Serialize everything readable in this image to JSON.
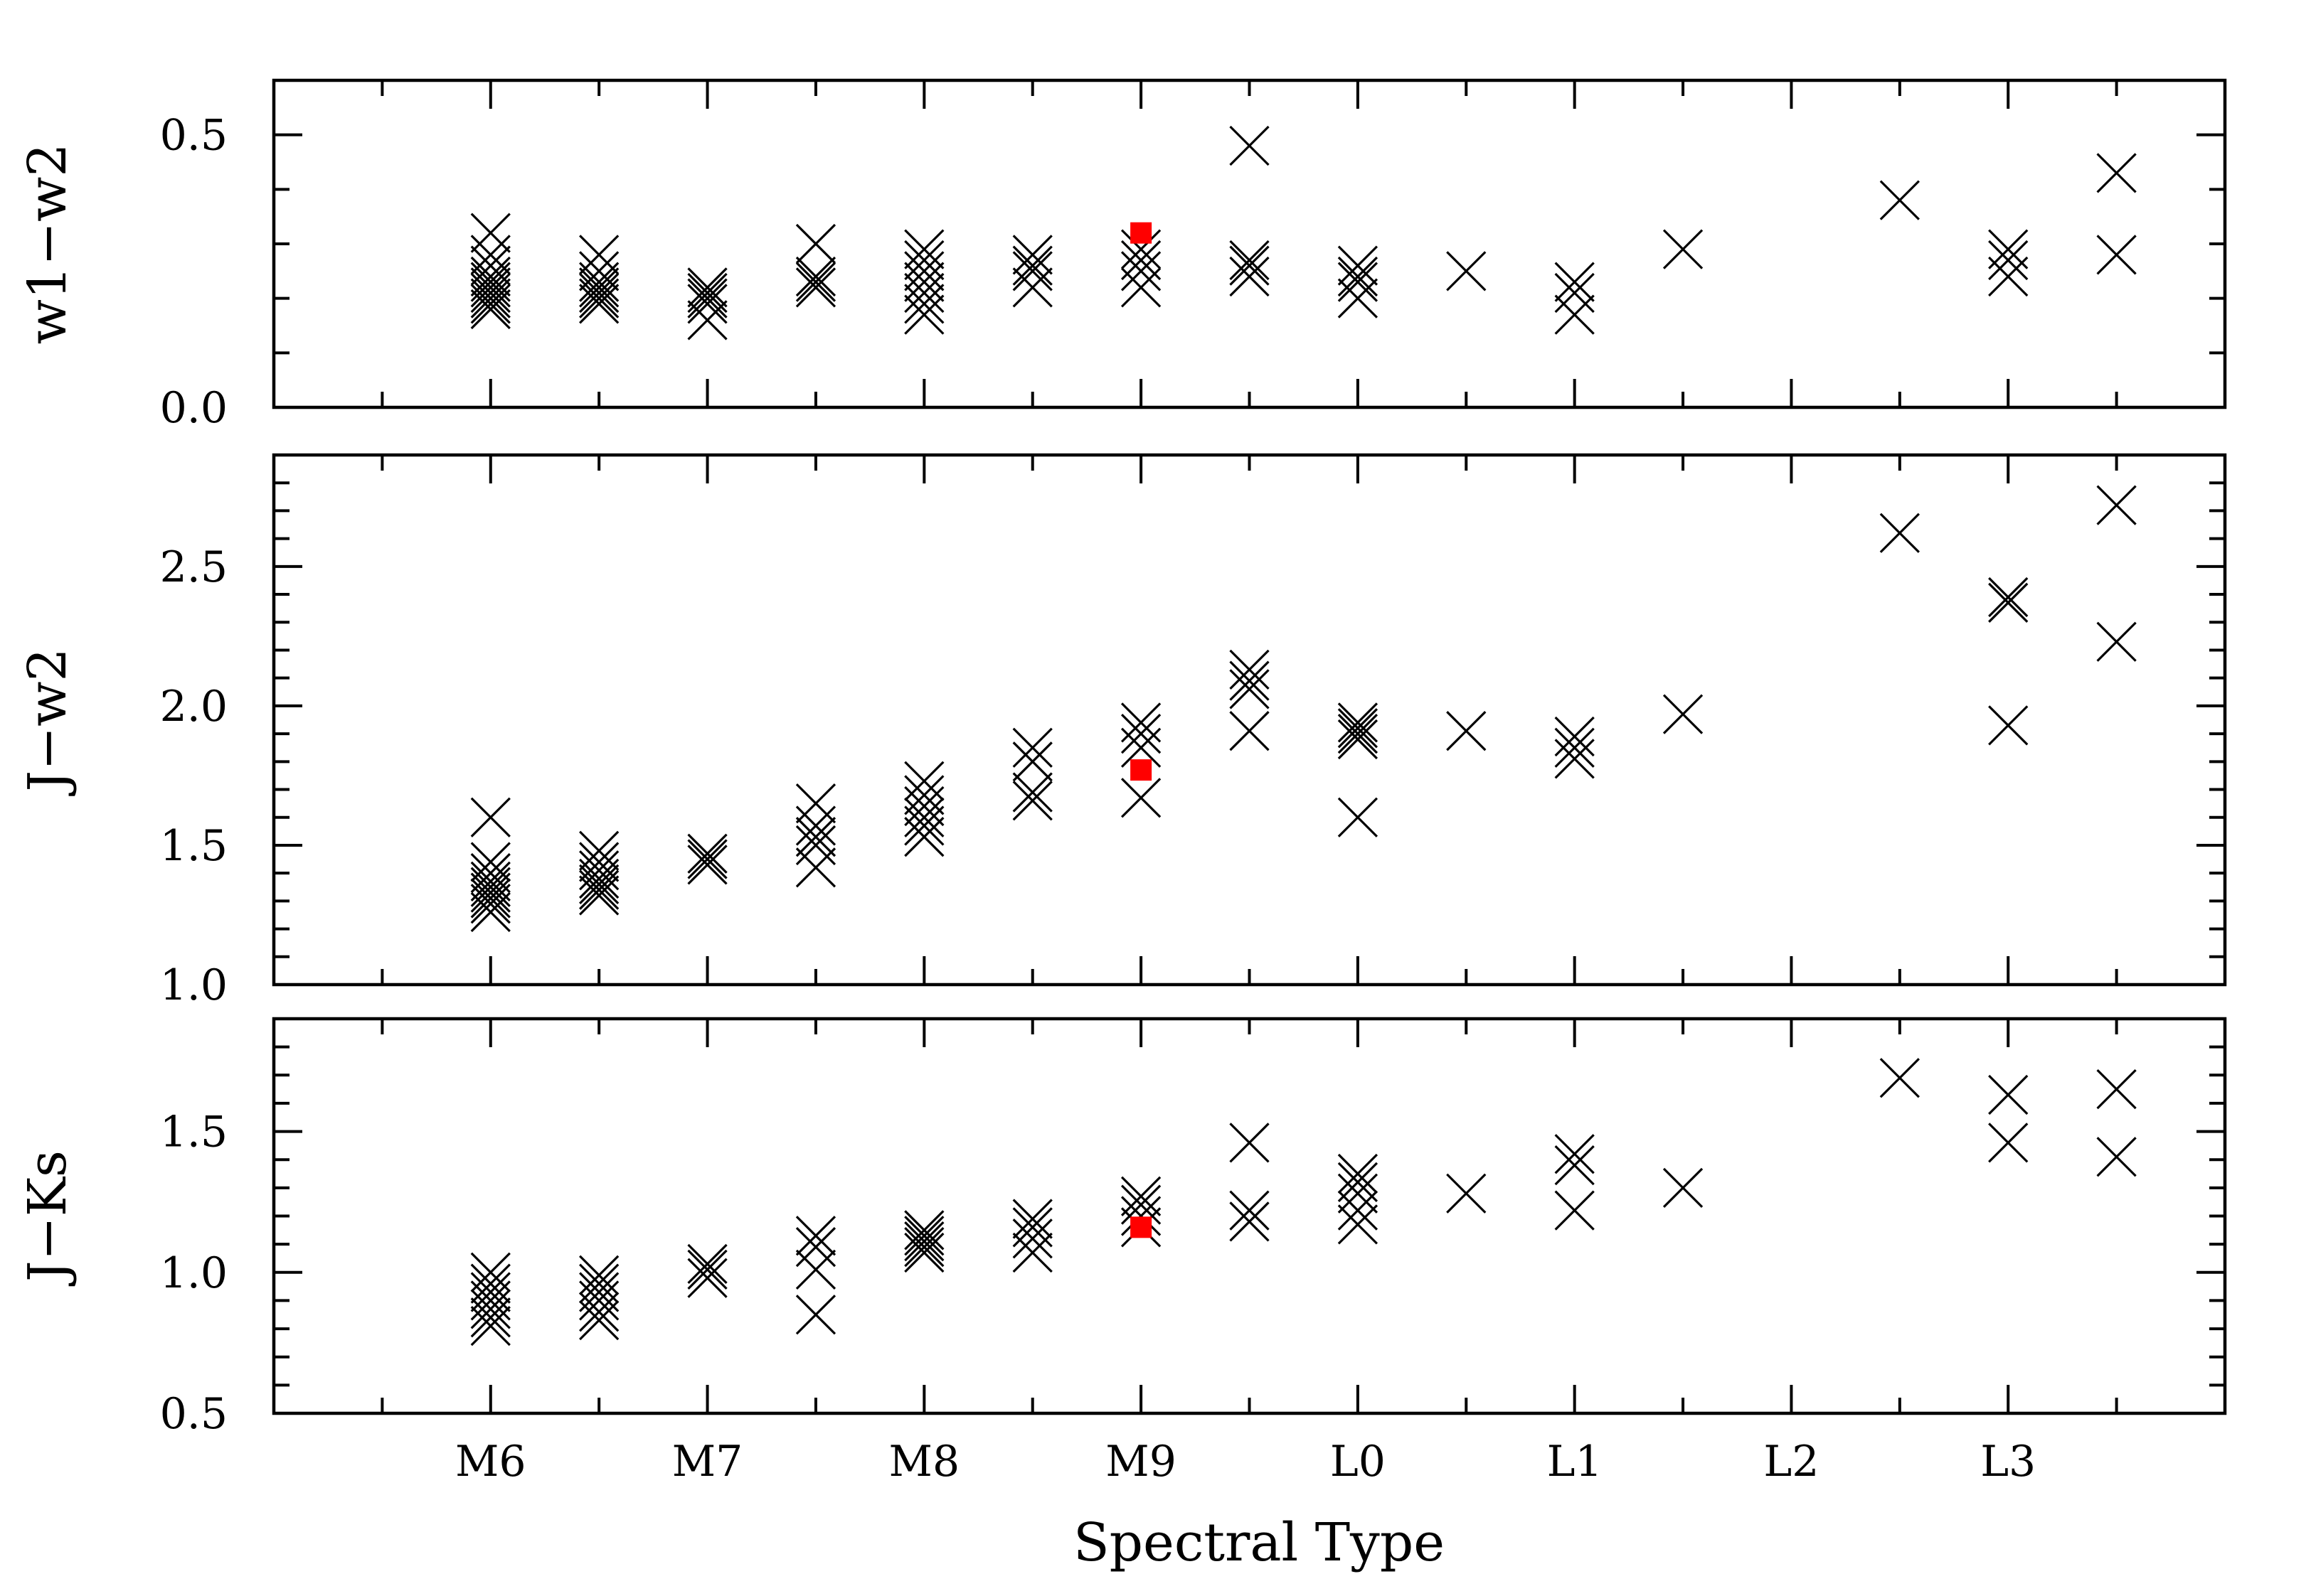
{
  "chart_data": {
    "type": "scatter",
    "xlabel": "Spectral Type",
    "x_tick_labels": [
      "M6",
      "M7",
      "M8",
      "M9",
      "L0",
      "L1",
      "L2",
      "L3"
    ],
    "x_tick_values": [
      6,
      7,
      8,
      9,
      10,
      11,
      12,
      13
    ],
    "xlim": [
      5,
      14
    ],
    "highlight_color": "#ff0000",
    "marker_color": "#000000",
    "marker": "cross",
    "highlight_marker": "filled-square",
    "panels": [
      {
        "ylabel": "w1−w2",
        "ylim": [
          0.0,
          0.6
        ],
        "y_ticks": [
          0.0,
          0.5
        ],
        "y_tick_labels": [
          "0.0",
          "0.5"
        ],
        "minor_step": 0.1,
        "points": [
          [
            6,
            0.32
          ],
          [
            6,
            0.28
          ],
          [
            6,
            0.26
          ],
          [
            6,
            0.24
          ],
          [
            6,
            0.23
          ],
          [
            6,
            0.22
          ],
          [
            6,
            0.21
          ],
          [
            6,
            0.2
          ],
          [
            6,
            0.19
          ],
          [
            6,
            0.18
          ],
          [
            6.5,
            0.28
          ],
          [
            6.5,
            0.25
          ],
          [
            6.5,
            0.23
          ],
          [
            6.5,
            0.22
          ],
          [
            6.5,
            0.21
          ],
          [
            6.5,
            0.2
          ],
          [
            6.5,
            0.19
          ],
          [
            7,
            0.22
          ],
          [
            7,
            0.21
          ],
          [
            7,
            0.2
          ],
          [
            7,
            0.19
          ],
          [
            7,
            0.16
          ],
          [
            7.5,
            0.3
          ],
          [
            7.5,
            0.24
          ],
          [
            7.5,
            0.23
          ],
          [
            7.5,
            0.22
          ],
          [
            8,
            0.29
          ],
          [
            8,
            0.27
          ],
          [
            8,
            0.25
          ],
          [
            8,
            0.23
          ],
          [
            8,
            0.21
          ],
          [
            8,
            0.19
          ],
          [
            8,
            0.17
          ],
          [
            8.5,
            0.28
          ],
          [
            8.5,
            0.26
          ],
          [
            8.5,
            0.25
          ],
          [
            8.5,
            0.22
          ],
          [
            9,
            0.29
          ],
          [
            9,
            0.27
          ],
          [
            9,
            0.25
          ],
          [
            9,
            0.22
          ],
          [
            9.5,
            0.48
          ],
          [
            9.5,
            0.27
          ],
          [
            9.5,
            0.26
          ],
          [
            9.5,
            0.24
          ],
          [
            10,
            0.26
          ],
          [
            10,
            0.24
          ],
          [
            10,
            0.23
          ],
          [
            10,
            0.2
          ],
          [
            10.5,
            0.25
          ],
          [
            11,
            0.23
          ],
          [
            11,
            0.21
          ],
          [
            11,
            0.17
          ],
          [
            11.5,
            0.29
          ],
          [
            12.5,
            0.38
          ],
          [
            13,
            0.29
          ],
          [
            13,
            0.27
          ],
          [
            13,
            0.24
          ],
          [
            13.5,
            0.43
          ],
          [
            13.5,
            0.28
          ]
        ],
        "highlight": [
          [
            9,
            0.32
          ]
        ]
      },
      {
        "ylabel": "J−w2",
        "ylim": [
          1.0,
          2.9
        ],
        "y_ticks": [
          1.0,
          1.5,
          2.0,
          2.5
        ],
        "y_tick_labels": [
          "1.0",
          "1.5",
          "2.0",
          "2.5"
        ],
        "minor_step": 0.1,
        "points": [
          [
            6,
            1.6
          ],
          [
            6,
            1.44
          ],
          [
            6,
            1.4
          ],
          [
            6,
            1.37
          ],
          [
            6,
            1.35
          ],
          [
            6,
            1.33
          ],
          [
            6,
            1.31
          ],
          [
            6,
            1.29
          ],
          [
            6,
            1.26
          ],
          [
            6.5,
            1.48
          ],
          [
            6.5,
            1.44
          ],
          [
            6.5,
            1.41
          ],
          [
            6.5,
            1.38
          ],
          [
            6.5,
            1.36
          ],
          [
            6.5,
            1.34
          ],
          [
            6.5,
            1.32
          ],
          [
            7,
            1.47
          ],
          [
            7,
            1.45
          ],
          [
            7,
            1.43
          ],
          [
            7.5,
            1.65
          ],
          [
            7.5,
            1.57
          ],
          [
            7.5,
            1.53
          ],
          [
            7.5,
            1.5
          ],
          [
            7.5,
            1.42
          ],
          [
            8,
            1.73
          ],
          [
            8,
            1.68
          ],
          [
            8,
            1.64
          ],
          [
            8,
            1.6
          ],
          [
            8,
            1.57
          ],
          [
            8,
            1.53
          ],
          [
            8.5,
            1.85
          ],
          [
            8.5,
            1.8
          ],
          [
            8.5,
            1.69
          ],
          [
            8.5,
            1.66
          ],
          [
            9,
            1.94
          ],
          [
            9,
            1.9
          ],
          [
            9,
            1.85
          ],
          [
            9,
            1.67
          ],
          [
            9.5,
            2.13
          ],
          [
            9.5,
            2.09
          ],
          [
            9.5,
            2.06
          ],
          [
            9.5,
            1.91
          ],
          [
            10,
            1.94
          ],
          [
            10,
            1.92
          ],
          [
            10,
            1.9
          ],
          [
            10,
            1.88
          ],
          [
            10,
            1.6
          ],
          [
            10.5,
            1.91
          ],
          [
            11,
            1.89
          ],
          [
            11,
            1.85
          ],
          [
            11,
            1.81
          ],
          [
            11.5,
            1.97
          ],
          [
            12.5,
            2.62
          ],
          [
            13,
            2.39
          ],
          [
            13,
            2.37
          ],
          [
            13,
            1.93
          ],
          [
            13.5,
            2.72
          ],
          [
            13.5,
            2.23
          ]
        ],
        "highlight": [
          [
            9,
            1.77
          ]
        ]
      },
      {
        "ylabel": "J−Ks",
        "ylim": [
          0.5,
          1.9
        ],
        "y_ticks": [
          0.5,
          1.0,
          1.5
        ],
        "y_tick_labels": [
          "0.5",
          "1.0",
          "1.5"
        ],
        "minor_step": 0.1,
        "points": [
          [
            6,
            1.0
          ],
          [
            6,
            0.96
          ],
          [
            6,
            0.93
          ],
          [
            6,
            0.9
          ],
          [
            6,
            0.87
          ],
          [
            6,
            0.84
          ],
          [
            6,
            0.81
          ],
          [
            6.5,
            0.99
          ],
          [
            6.5,
            0.96
          ],
          [
            6.5,
            0.93
          ],
          [
            6.5,
            0.9
          ],
          [
            6.5,
            0.86
          ],
          [
            6.5,
            0.83
          ],
          [
            7,
            1.03
          ],
          [
            7,
            1.01
          ],
          [
            7,
            0.98
          ],
          [
            7.5,
            1.13
          ],
          [
            7.5,
            1.09
          ],
          [
            7.5,
            1.01
          ],
          [
            7.5,
            0.85
          ],
          [
            8,
            1.15
          ],
          [
            8,
            1.13
          ],
          [
            8,
            1.11
          ],
          [
            8,
            1.09
          ],
          [
            8,
            1.07
          ],
          [
            8.5,
            1.19
          ],
          [
            8.5,
            1.16
          ],
          [
            8.5,
            1.12
          ],
          [
            8.5,
            1.07
          ],
          [
            9,
            1.27
          ],
          [
            9,
            1.24
          ],
          [
            9,
            1.2
          ],
          [
            9,
            1.16
          ],
          [
            9.5,
            1.46
          ],
          [
            9.5,
            1.22
          ],
          [
            9.5,
            1.18
          ],
          [
            10,
            1.35
          ],
          [
            10,
            1.32
          ],
          [
            10,
            1.28
          ],
          [
            10,
            1.22
          ],
          [
            10,
            1.17
          ],
          [
            10.5,
            1.28
          ],
          [
            11,
            1.42
          ],
          [
            11,
            1.38
          ],
          [
            11,
            1.22
          ],
          [
            11.5,
            1.3
          ],
          [
            12.5,
            1.69
          ],
          [
            13,
            1.63
          ],
          [
            13,
            1.46
          ],
          [
            13.5,
            1.65
          ],
          [
            13.5,
            1.41
          ]
        ],
        "highlight": [
          [
            9,
            1.16
          ]
        ]
      }
    ]
  }
}
